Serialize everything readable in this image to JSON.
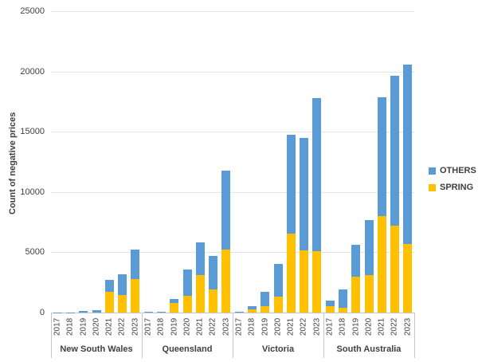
{
  "chart_data": {
    "type": "bar",
    "stacked": true,
    "title": "",
    "ylabel": "Count of negative prices",
    "xlabel": "",
    "ylim": [
      0,
      25000
    ],
    "yticks": [
      0,
      5000,
      10000,
      15000,
      20000,
      25000
    ],
    "grid": true,
    "legend_position": "right",
    "years": [
      "2017",
      "2018",
      "2019",
      "2020",
      "2021",
      "2022",
      "2023"
    ],
    "groups": [
      "New South Wales",
      "Queensland",
      "Victoria",
      "South Australia"
    ],
    "series": [
      {
        "name": "SPRING",
        "color": "#FFC000",
        "values": [
          [
            0,
            0,
            0,
            0,
            1700,
            1450,
            2800
          ],
          [
            0,
            0,
            800,
            1400,
            3100,
            1900,
            5200
          ],
          [
            0,
            250,
            530,
            1320,
            6550,
            5150,
            5100
          ],
          [
            500,
            400,
            3000,
            3100,
            8000,
            7200,
            5700
          ]
        ]
      },
      {
        "name": "OTHERS",
        "color": "#5B9BD5",
        "values": [
          [
            10,
            20,
            130,
            220,
            1020,
            1730,
            2430
          ],
          [
            60,
            90,
            330,
            2200,
            2730,
            2800,
            6590
          ],
          [
            100,
            280,
            1190,
            2720,
            8220,
            9350,
            12710
          ],
          [
            470,
            1520,
            2630,
            4580,
            9880,
            12470,
            14900
          ]
        ]
      }
    ]
  },
  "legend": {
    "others_label": "OTHERS",
    "spring_label": "SPRING"
  }
}
